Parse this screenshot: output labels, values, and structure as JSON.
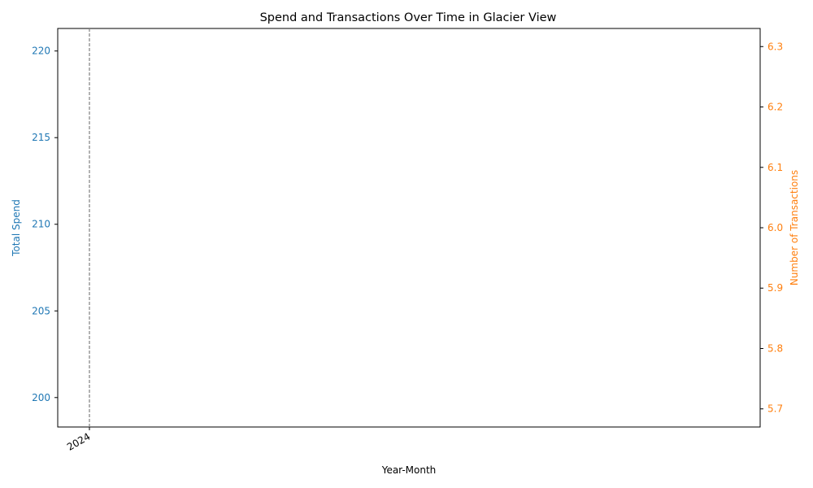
{
  "chart_data": {
    "type": "line",
    "title": "Spend and Transactions Over Time in Glacier View",
    "xlabel": "Year-Month",
    "x_ticks": [
      "2024"
    ],
    "x_marker": "2024",
    "left_axis": {
      "label": "Total Spend",
      "color": "#1f77b4",
      "ylim": [
        198.3,
        221.3
      ],
      "ticks": [
        200,
        205,
        210,
        215,
        220
      ]
    },
    "right_axis": {
      "label": "Number of Transactions",
      "color": "#ff7f0e",
      "ylim": [
        5.67,
        6.33
      ],
      "ticks": [
        5.7,
        5.8,
        5.9,
        6.0,
        6.1,
        6.2,
        6.3
      ]
    },
    "marker_color": "#808080",
    "grid": false,
    "legend": "none"
  }
}
